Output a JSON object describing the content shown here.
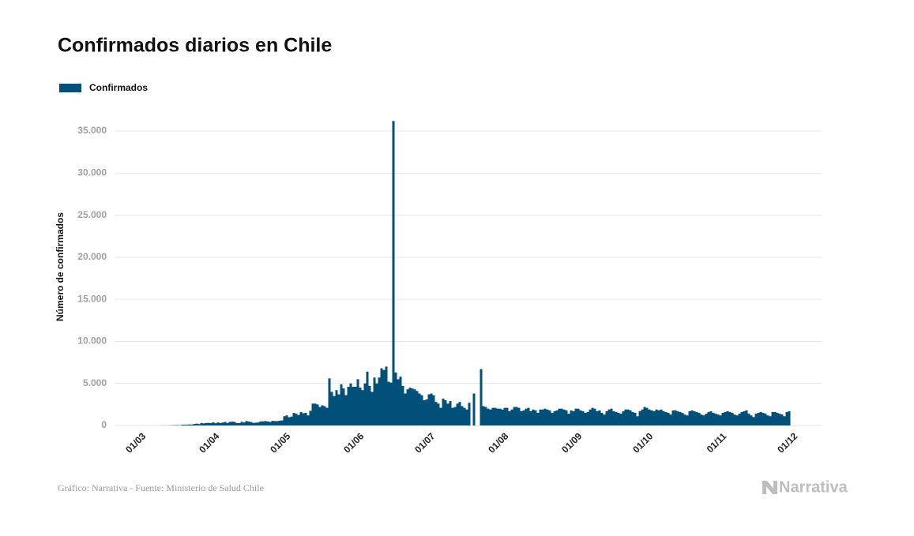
{
  "chart_data": {
    "type": "bar",
    "title": "Confirmados diarios en Chile",
    "y_label": "Número de confirmados",
    "source": "Gráfico: Narrativa - Fuente: Ministerio de Salud Chile",
    "logo": "Narrativa",
    "grid": true,
    "ylim": [
      0,
      37500
    ],
    "yticks": [
      0,
      {
        "value": 5000,
        "label": "5.000"
      },
      {
        "value": 10000,
        "label": "10.000"
      },
      {
        "value": 15000,
        "label": "15.000"
      },
      {
        "value": 20000,
        "label": "20.000"
      },
      {
        "value": 25000,
        "label": "25.000"
      },
      {
        "value": 30000,
        "label": "30.000"
      },
      {
        "value": 35000,
        "label": "35.000"
      }
    ],
    "categories": [
      "01/03",
      null,
      null,
      null,
      null,
      null,
      null,
      null,
      null,
      null,
      null,
      null,
      null,
      null,
      null,
      null,
      null,
      null,
      null,
      null,
      null,
      null,
      null,
      null,
      null,
      null,
      null,
      null,
      null,
      null,
      null,
      "01/04",
      null,
      null,
      null,
      null,
      null,
      null,
      null,
      null,
      null,
      null,
      null,
      null,
      null,
      null,
      null,
      null,
      null,
      null,
      null,
      null,
      null,
      null,
      null,
      null,
      null,
      null,
      null,
      null,
      null,
      "01/05",
      null,
      null,
      null,
      null,
      null,
      null,
      null,
      null,
      null,
      null,
      null,
      null,
      null,
      null,
      null,
      null,
      null,
      null,
      null,
      null,
      null,
      null,
      null,
      null,
      null,
      null,
      null,
      null,
      null,
      null,
      "01/06",
      null,
      null,
      null,
      null,
      null,
      null,
      null,
      null,
      null,
      null,
      null,
      null,
      null,
      null,
      null,
      null,
      null,
      null,
      null,
      null,
      null,
      null,
      null,
      null,
      null,
      null,
      null,
      null,
      null,
      "01/07",
      null,
      null,
      null,
      null,
      null,
      null,
      null,
      null,
      null,
      null,
      null,
      null,
      null,
      null,
      null,
      null,
      null,
      null,
      null,
      null,
      null,
      null,
      null,
      null,
      null,
      null,
      null,
      null,
      null,
      null,
      "01/08",
      null,
      null,
      null,
      null,
      null,
      null,
      null,
      null,
      null,
      null,
      null,
      null,
      null,
      null,
      null,
      null,
      null,
      null,
      null,
      null,
      null,
      null,
      null,
      null,
      null,
      null,
      null,
      null,
      null,
      null,
      "01/09",
      null,
      null,
      null,
      null,
      null,
      null,
      null,
      null,
      null,
      null,
      null,
      null,
      null,
      null,
      null,
      null,
      null,
      null,
      null,
      null,
      null,
      null,
      null,
      null,
      null,
      null,
      null,
      null,
      null,
      "01/10",
      null,
      null,
      null,
      null,
      null,
      null,
      null,
      null,
      null,
      null,
      null,
      null,
      null,
      null,
      null,
      null,
      null,
      null,
      null,
      null,
      null,
      null,
      null,
      null,
      null,
      null,
      null,
      null,
      null,
      null,
      "01/11",
      null,
      null,
      null,
      null,
      null,
      null,
      null,
      null,
      null,
      null,
      null,
      null,
      null,
      null,
      null,
      null,
      null,
      null,
      null,
      null,
      null,
      null,
      null,
      null,
      null,
      null,
      null,
      null,
      null,
      "01/12"
    ],
    "series": [
      {
        "name": "Confirmados",
        "color": "#00507a",
        "values": [
          0,
          0,
          1,
          0,
          1,
          2,
          3,
          3,
          4,
          3,
          10,
          10,
          10,
          13,
          20,
          28,
          45,
          46,
          30,
          92,
          97,
          100,
          120,
          114,
          176,
          220,
          164,
          304,
          250,
          299,
          310,
          293,
          373,
          265,
          361,
          299,
          354,
          426,
          301,
          427,
          453,
          426,
          286,
          281,
          432,
          357,
          529,
          461,
          406,
          313,
          331,
          366,
          478,
          495,
          522,
          482,
          421,
          552,
          529,
          519,
          565,
          600,
          1100,
          1200,
          980,
          1060,
          1500,
          1400,
          1250,
          1600,
          1450,
          1500,
          1200,
          1750,
          2600,
          2600,
          2500,
          2200,
          2400,
          2300,
          2100,
          5600,
          4000,
          3500,
          4200,
          3700,
          4900,
          4400,
          3600,
          4600,
          5000,
          4600,
          4600,
          5500,
          4500,
          4200,
          5000,
          6400,
          4700,
          4000,
          5700,
          5000,
          5700,
          6800,
          6600,
          7000,
          5200,
          5100,
          36200,
          6300,
          5500,
          5800,
          4700,
          3800,
          4300,
          4500,
          4400,
          4300,
          4100,
          3800,
          3600,
          3000,
          3100,
          3700,
          3800,
          3600,
          2800,
          2600,
          2100,
          3200,
          3000,
          2600,
          2900,
          2100,
          2200,
          2600,
          2800,
          2300,
          2100,
          1900,
          2700,
          null,
          3800,
          null,
          null,
          6700,
          2300,
          2200,
          2000,
          1900,
          2100,
          2100,
          2000,
          2000,
          1900,
          2100,
          2100,
          1700,
          1900,
          2200,
          2200,
          2100,
          1700,
          1800,
          2000,
          2100,
          1700,
          1900,
          1800,
          1500,
          1900,
          1900,
          2000,
          1900,
          1800,
          1500,
          1700,
          1800,
          2000,
          2000,
          1900,
          1800,
          1400,
          1800,
          1700,
          2000,
          2000,
          1800,
          1700,
          1500,
          1600,
          1900,
          2100,
          2000,
          1700,
          1800,
          1500,
          1300,
          1700,
          1900,
          2000,
          1700,
          1600,
          1500,
          1400,
          1700,
          1900,
          1900,
          1800,
          1600,
          1500,
          1100,
          1700,
          1900,
          2200,
          2100,
          1900,
          1800,
          1700,
          1900,
          1800,
          1900,
          1700,
          1600,
          1500,
          1300,
          1800,
          1800,
          1700,
          1600,
          1500,
          1300,
          1200,
          1700,
          1800,
          1700,
          1600,
          1500,
          1300,
          1200,
          1400,
          1600,
          1700,
          1500,
          1400,
          1300,
          1200,
          1500,
          1600,
          1700,
          1600,
          1500,
          1300,
          1200,
          1400,
          1600,
          1700,
          1800,
          1400,
          1200,
          1000,
          1400,
          1500,
          1600,
          1500,
          1400,
          1200,
          1100,
          1600,
          1600,
          1500,
          1400,
          1300,
          1100,
          1600,
          1700
        ]
      }
    ]
  }
}
